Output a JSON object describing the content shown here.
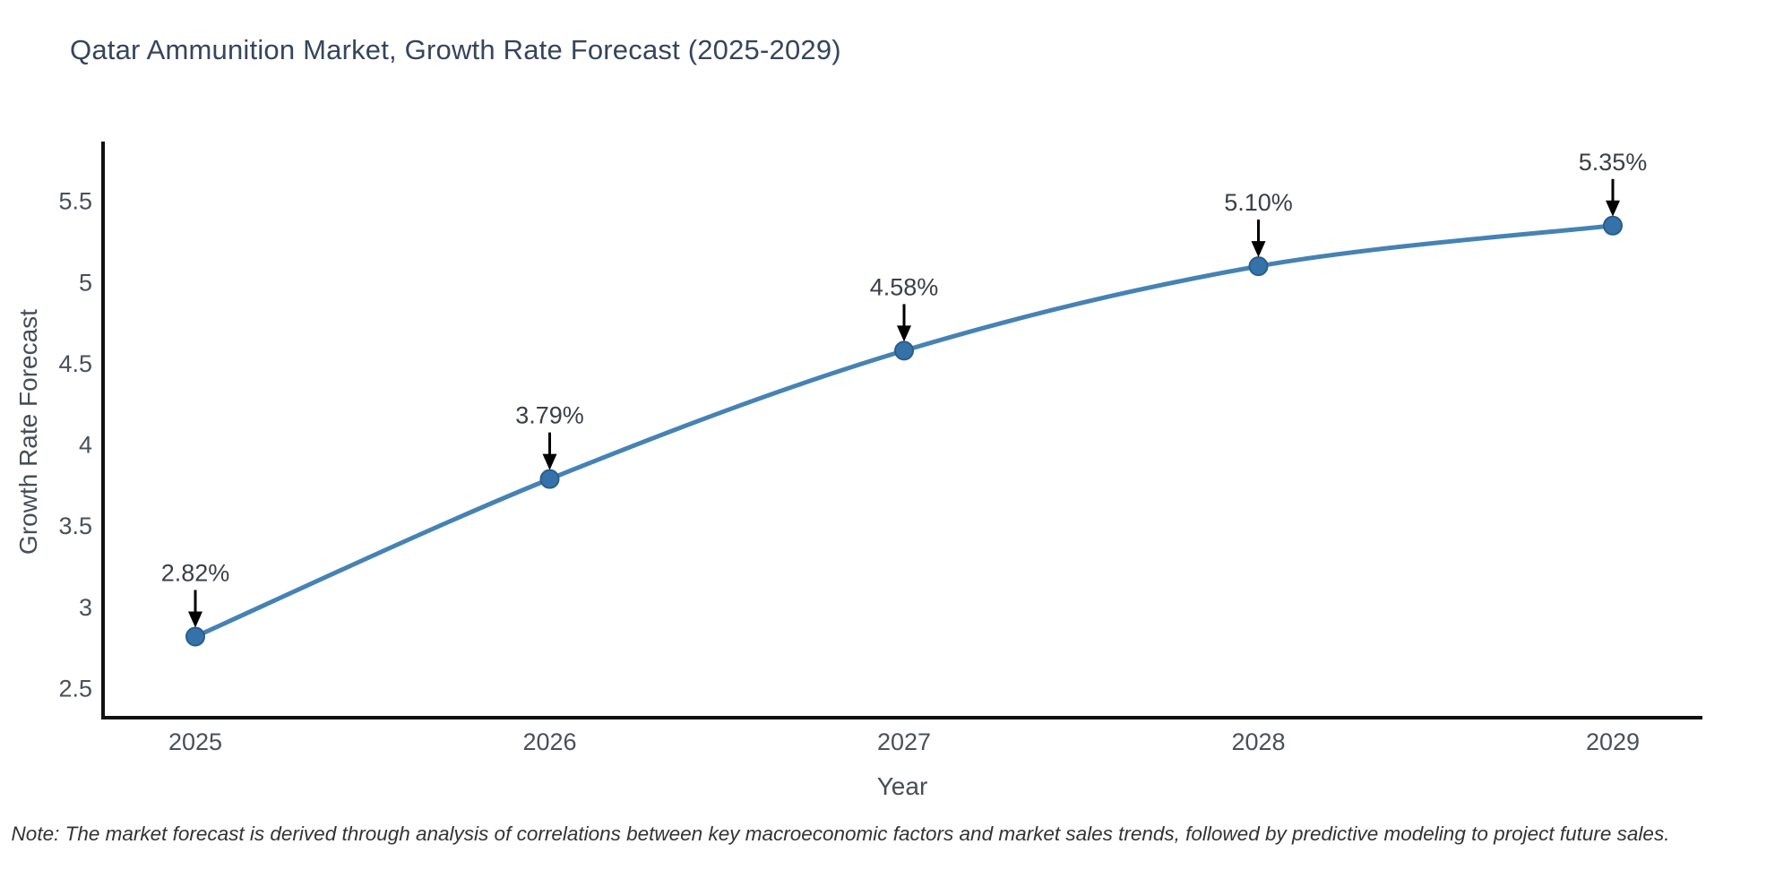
{
  "chart_data": {
    "type": "line",
    "title": "Qatar Ammunition Market, Growth Rate Forecast (2025-2029)",
    "xlabel": "Year",
    "ylabel": "Growth Rate Forecast",
    "categories": [
      "2025",
      "2026",
      "2027",
      "2028",
      "2029"
    ],
    "values": [
      2.82,
      3.79,
      4.58,
      5.1,
      5.35
    ],
    "point_labels": [
      "2.82%",
      "3.79%",
      "4.58%",
      "5.10%",
      "5.35%"
    ],
    "yticks": [
      2.5,
      3,
      3.5,
      4,
      4.5,
      5,
      5.5
    ],
    "ylim": [
      2.3,
      5.86
    ],
    "grid": false,
    "legend": "none",
    "marker": "circle",
    "annotation_arrow": "down-arrow",
    "note": "Note: The market forecast is derived through analysis of correlations between key macroeconomic factors and market sales trends, followed by predictive modeling to project future sales.",
    "colors": {
      "line": "#4682b4",
      "marker_fill": "#3572a9",
      "marker_edge": "#2b5d8c",
      "arrow": "#000000",
      "title": "#36455e",
      "axis_spine": "#111111",
      "tick_label": "#4a5059",
      "annotation_text": "#3b4046",
      "note_text": "#333333",
      "background": "#ffffff"
    }
  }
}
